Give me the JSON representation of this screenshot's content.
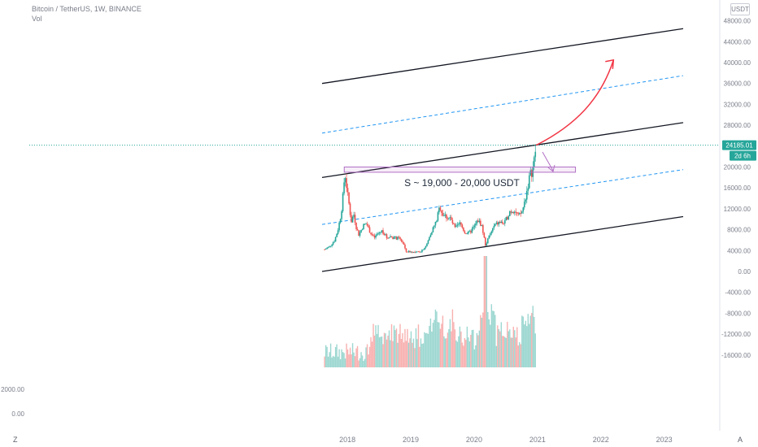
{
  "legend": {
    "title": "Bitcoin / TetherUS, 1W, BINANCE",
    "vol": "Vol"
  },
  "currency": "USDT",
  "price_tag": {
    "value": "24185.01",
    "countdown": "2d 6h",
    "color": "#26a69a"
  },
  "annotation": {
    "text": "S ~ 19,000 - 20,000 USDT",
    "zone_color": "#b16fc4",
    "arrow_color": "#f23645"
  },
  "lower_pane": {
    "labels": [
      "2000.00",
      "0.00"
    ]
  },
  "corners": {
    "left": "Z",
    "right": "A"
  },
  "colors": {
    "up": "#26a69a",
    "down": "#ef5350",
    "channel": "#131722",
    "midline": "#2196f3",
    "axis_text": "#7a7e8a"
  },
  "chart_data": {
    "type": "candlestick",
    "title": "Bitcoin / TetherUS, 1W, BINANCE",
    "y_axis": {
      "ticks": [
        "48000.00",
        "44000.00",
        "40000.00",
        "36000.00",
        "32000.00",
        "28000.00",
        "20000.00",
        "16000.00",
        "12000.00",
        "8000.00",
        "4000.00",
        "0.00",
        "-4000.00",
        "-8000.00",
        "-12000.00",
        "-16000.00"
      ],
      "ylim": [
        -18000,
        50000
      ]
    },
    "x_axis": {
      "ticks": [
        "2018",
        "2019",
        "2020",
        "2021",
        "2022",
        "2023"
      ],
      "xlim": [
        2017.6,
        2023.3
      ]
    },
    "price_path": [
      [
        2017.64,
        4200
      ],
      [
        2017.72,
        4800
      ],
      [
        2017.8,
        6000
      ],
      [
        2017.85,
        8000
      ],
      [
        2017.9,
        11000
      ],
      [
        2017.93,
        14500
      ],
      [
        2017.96,
        19000
      ],
      [
        2018.0,
        15000
      ],
      [
        2018.03,
        12500
      ],
      [
        2018.06,
        9500
      ],
      [
        2018.1,
        11000
      ],
      [
        2018.14,
        8500
      ],
      [
        2018.18,
        7000
      ],
      [
        2018.25,
        8800
      ],
      [
        2018.3,
        9200
      ],
      [
        2018.36,
        7500
      ],
      [
        2018.42,
        6400
      ],
      [
        2018.48,
        7200
      ],
      [
        2018.55,
        7800
      ],
      [
        2018.62,
        6500
      ],
      [
        2018.68,
        6700
      ],
      [
        2018.75,
        6400
      ],
      [
        2018.82,
        6300
      ],
      [
        2018.88,
        5500
      ],
      [
        2018.92,
        3800
      ],
      [
        2019.0,
        3800
      ],
      [
        2019.08,
        3600
      ],
      [
        2019.16,
        3900
      ],
      [
        2019.25,
        5000
      ],
      [
        2019.32,
        7500
      ],
      [
        2019.4,
        9500
      ],
      [
        2019.46,
        12500
      ],
      [
        2019.5,
        11000
      ],
      [
        2019.56,
        10500
      ],
      [
        2019.62,
        10200
      ],
      [
        2019.7,
        8200
      ],
      [
        2019.78,
        9200
      ],
      [
        2019.85,
        7500
      ],
      [
        2019.92,
        7300
      ],
      [
        2020.0,
        8500
      ],
      [
        2020.06,
        9800
      ],
      [
        2020.12,
        8800
      ],
      [
        2020.18,
        5000
      ],
      [
        2020.24,
        6800
      ],
      [
        2020.32,
        8800
      ],
      [
        2020.4,
        9400
      ],
      [
        2020.48,
        9200
      ],
      [
        2020.56,
        11500
      ],
      [
        2020.64,
        11800
      ],
      [
        2020.7,
        10500
      ],
      [
        2020.76,
        11500
      ],
      [
        2020.8,
        13500
      ],
      [
        2020.85,
        16500
      ],
      [
        2020.88,
        18500
      ],
      [
        2020.92,
        19200
      ],
      [
        2020.95,
        21500
      ],
      [
        2020.98,
        24185
      ]
    ],
    "volume": {
      "axis_ticks": [
        "2000.00",
        "0.00"
      ],
      "peak_date": 2020.18
    },
    "trend_lines": [
      {
        "name": "channel-top",
        "points": [
          [
            2017.6,
            36000
          ],
          [
            2023.3,
            46500
          ]
        ]
      },
      {
        "name": "channel-middle",
        "points": [
          [
            2017.6,
            18000
          ],
          [
            2023.3,
            28500
          ]
        ]
      },
      {
        "name": "channel-bottom",
        "points": [
          [
            2017.6,
            0
          ],
          [
            2023.3,
            10500
          ]
        ]
      },
      {
        "name": "midline-upper",
        "points": [
          [
            2017.6,
            26500
          ],
          [
            2023.3,
            37500
          ]
        ]
      },
      {
        "name": "midline-lower",
        "points": [
          [
            2017.6,
            9000
          ],
          [
            2023.3,
            19500
          ]
        ]
      }
    ],
    "current_price": 24185.01,
    "support_zone": {
      "low": 19000,
      "high": 20000,
      "x_start": 2017.95,
      "x_end": 2021.6
    },
    "projection": [
      [
        2020.98,
        24185
      ],
      [
        2021.6,
        28000
      ],
      [
        2022.0,
        33000
      ],
      [
        2022.2,
        40500
      ]
    ]
  }
}
